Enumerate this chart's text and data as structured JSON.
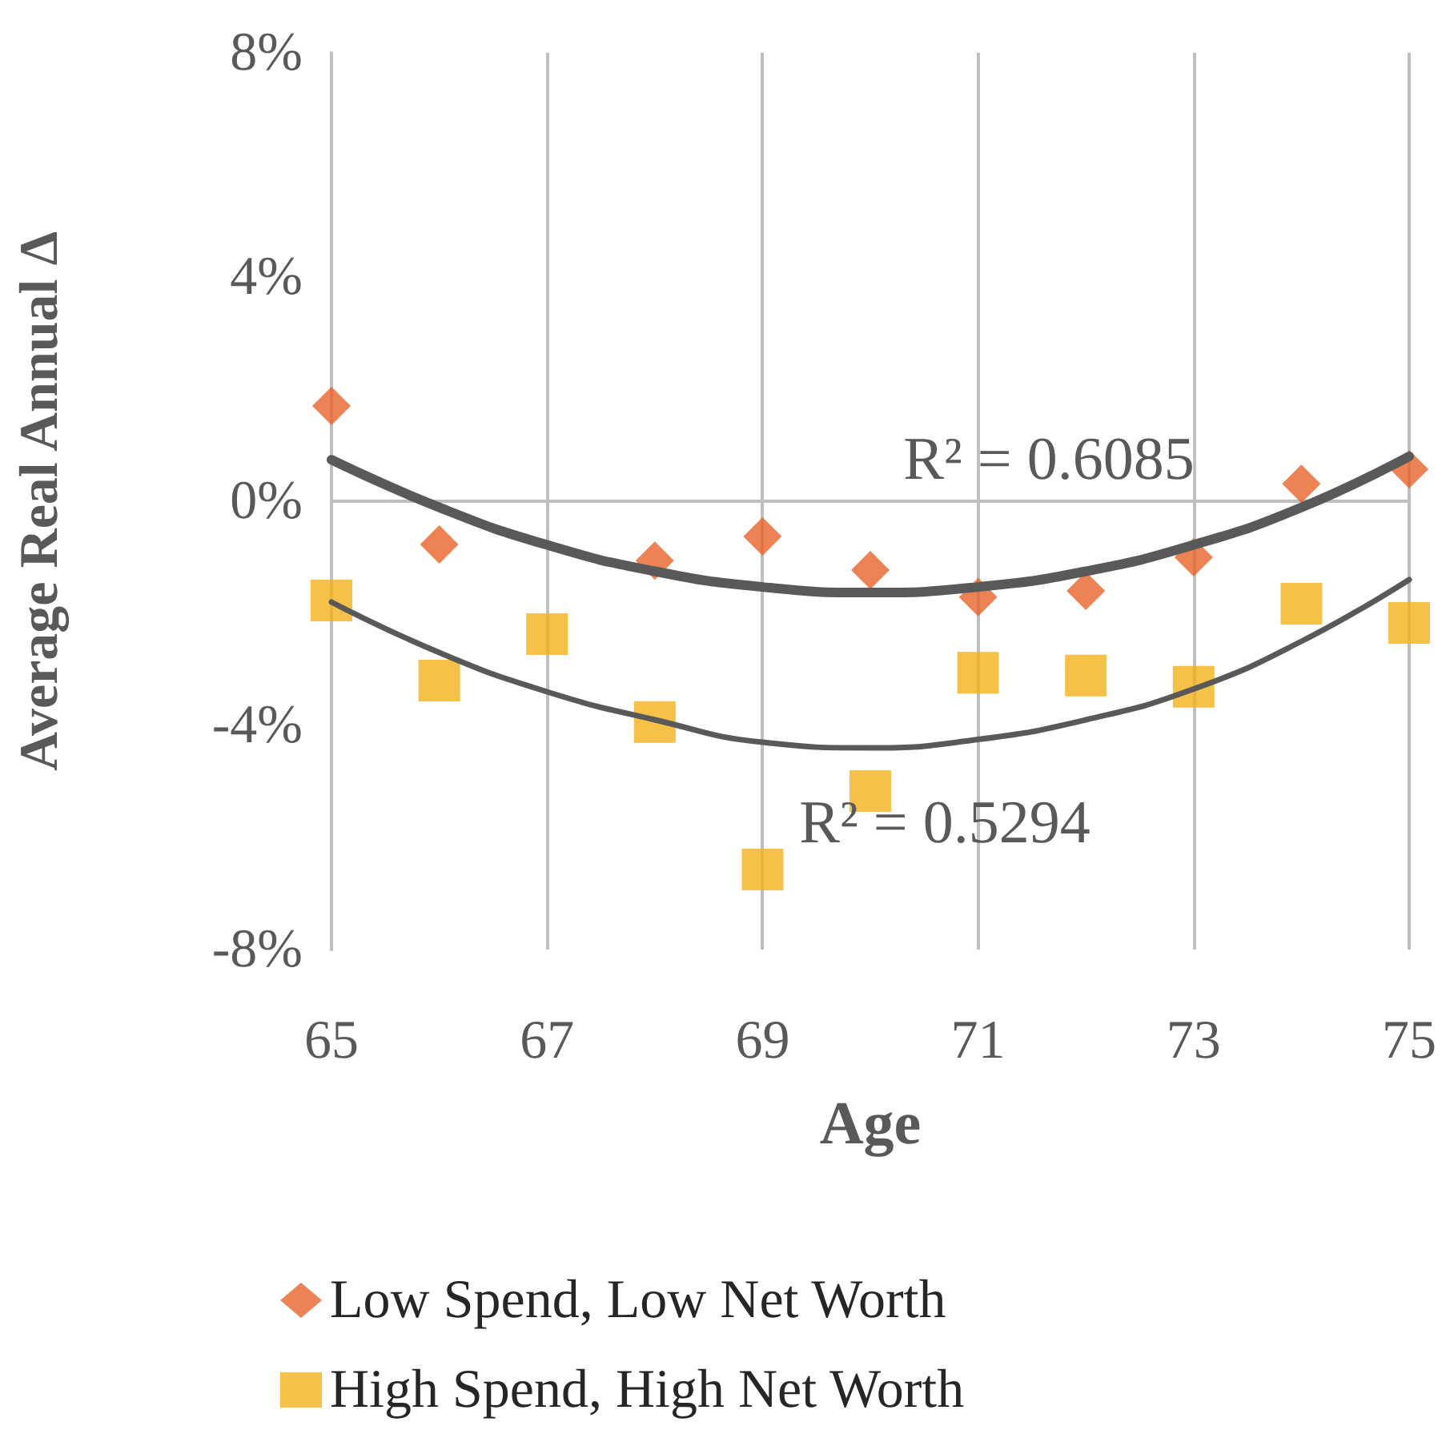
{
  "chart_data": {
    "type": "scatter",
    "xlabel": "Age",
    "ylabel": "Average Real Annual Δ",
    "xlim": [
      65,
      75
    ],
    "xticks": [
      65,
      67,
      69,
      71,
      73,
      75
    ],
    "ylim": [
      -8,
      8
    ],
    "yticks": [
      {
        "value": -8,
        "label": "-8%"
      },
      {
        "value": -4,
        "label": "-4%"
      },
      {
        "value": 0,
        "label": "0%"
      },
      {
        "value": 4,
        "label": "4%"
      },
      {
        "value": 8,
        "label": "8%"
      }
    ],
    "grid": "x",
    "legend": "bottom",
    "ref_lines": [
      {
        "axis": "y",
        "value": 0,
        "color": "#bfbfbf"
      }
    ],
    "series": [
      {
        "name": "Low Spend, Low Net Worth",
        "color": "#e9642a",
        "marker": "diamond",
        "x": [
          65,
          66,
          68,
          69,
          70,
          71,
          72,
          73,
          74,
          75
        ],
        "values": [
          1.7,
          -0.77,
          -1.06,
          -0.63,
          -1.23,
          -1.71,
          -1.6,
          -1.0,
          0.31,
          0.57
        ]
      },
      {
        "name": "High Spend, High Net Worth",
        "color": "#f2b21a",
        "marker": "square",
        "x": [
          65,
          66,
          67,
          68,
          69,
          70,
          71,
          72,
          73,
          74,
          75
        ],
        "values": [
          -1.77,
          -3.2,
          -2.37,
          -3.94,
          -6.57,
          -5.17,
          -3.06,
          -3.11,
          -3.31,
          -1.83,
          -2.17
        ]
      },
      {
        "type": "line",
        "color": "#595959",
        "x": [
          65,
          66,
          67,
          68,
          69,
          70,
          71,
          72,
          73,
          74,
          75
        ],
        "values": [
          0.74,
          -0.11,
          -0.78,
          -1.25,
          -1.53,
          -1.63,
          -1.53,
          -1.25,
          -0.78,
          -0.11,
          0.8
        ]
      },
      {
        "type": "line",
        "color": "#595959",
        "x": [
          65,
          66,
          67,
          68,
          69,
          70,
          71,
          72,
          73,
          74,
          75
        ],
        "values": [
          -1.8,
          -2.7,
          -3.4,
          -3.9,
          -4.3,
          -4.4,
          -4.25,
          -3.9,
          -3.35,
          -2.5,
          -1.4
        ]
      }
    ],
    "annotations": [
      "R² = 0.6085",
      "R² = 0.5294"
    ]
  }
}
